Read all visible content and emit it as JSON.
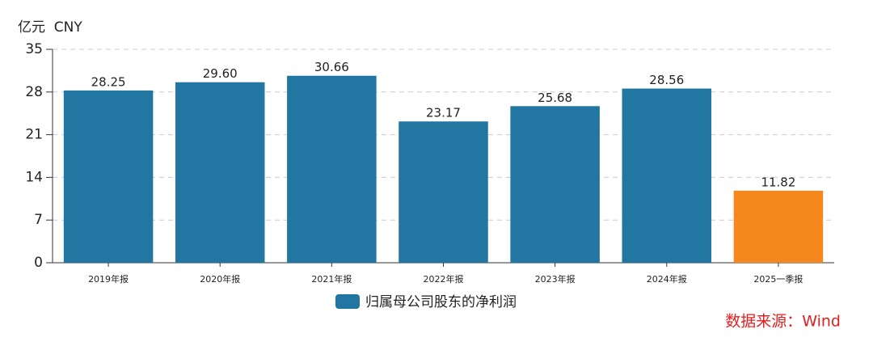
{
  "chart_data": {
    "type": "bar",
    "y_label": "亿元  CNY",
    "categories": [
      "2019年报",
      "2020年报",
      "2021年报",
      "2022年报",
      "2023年报",
      "2024年报",
      "2025一季报"
    ],
    "series": [
      {
        "name": "归属母公司股东的净利润",
        "color": "#2276a2",
        "values": [
          28.25,
          29.6,
          30.66,
          23.17,
          25.68,
          28.56,
          11.82
        ],
        "value_labels": [
          "28.25",
          "29.60",
          "30.66",
          "23.17",
          "25.68",
          "28.56",
          "11.82"
        ],
        "bar_colors": [
          "#2276a2",
          "#2276a2",
          "#2276a2",
          "#2276a2",
          "#2276a2",
          "#2276a2",
          "#f4871d"
        ]
      }
    ],
    "ylim": [
      0,
      35
    ],
    "yticks": [
      0,
      7,
      14,
      21,
      28,
      35
    ],
    "grid": true,
    "source": "数据来源：Wind"
  }
}
